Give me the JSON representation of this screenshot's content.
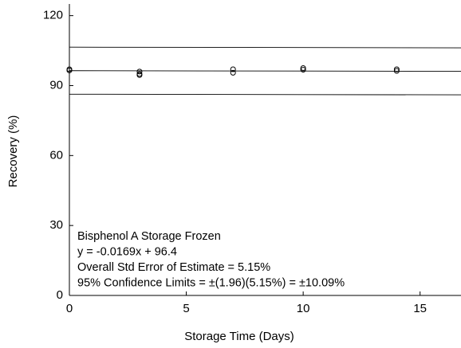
{
  "chart_data": {
    "type": "scatter",
    "xlabel": "Storage Time (Days)",
    "ylabel": "Recovery (%)",
    "xlim": [
      0,
      16.75
    ],
    "ylim": [
      0,
      125
    ],
    "xticks": [
      0,
      5,
      10,
      15
    ],
    "yticks": [
      0,
      30,
      60,
      90,
      120
    ],
    "series": [
      {
        "color": "#000000",
        "x": [
          0,
          0,
          3,
          3,
          3,
          7,
          7,
          10,
          10,
          14,
          14
        ],
        "values": [
          97,
          96.5,
          96,
          95,
          94.5,
          97,
          95.5,
          97.5,
          96.8,
          97,
          96.3
        ]
      }
    ],
    "lines": [
      {
        "x": [
          0,
          16.75
        ],
        "values": [
          96.4,
          96.12
        ]
      },
      {
        "x": [
          0,
          16.75
        ],
        "values": [
          106.49,
          106.21
        ]
      },
      {
        "x": [
          0,
          16.75
        ],
        "values": [
          86.31,
          86.03
        ]
      }
    ],
    "annotations": [
      "Bisphenol A Storage Frozen",
      "y = -0.0169x + 96.4",
      "Overall Std Error of Estimate = 5.15%",
      "95% Confidence Limits = ±(1.96)(5.15%) = ±10.09%"
    ]
  }
}
